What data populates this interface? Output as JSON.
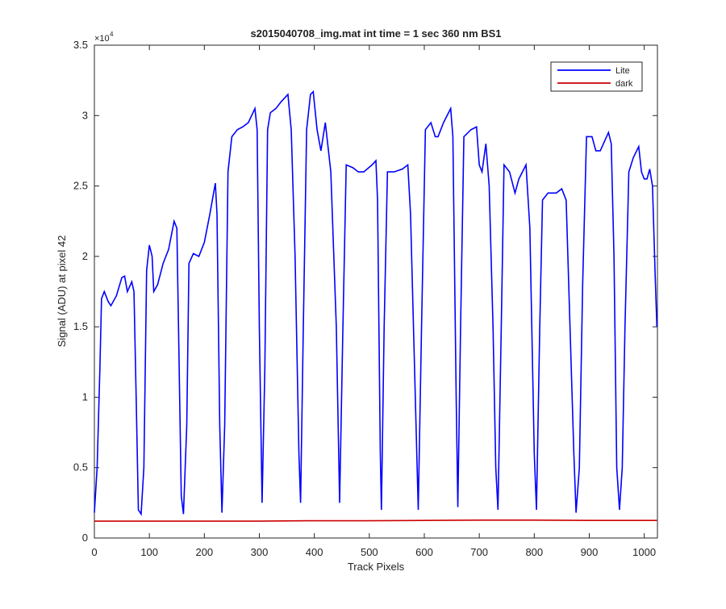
{
  "chart_data": {
    "type": "line",
    "title": "s2015040708_img.mat int time = 1 sec  360 nm BS1",
    "x_label": "Track Pixels",
    "y_label": "Signal (ADU) at pixel 42",
    "y_multiplier": "×10",
    "y_multiplier_exponent": "4",
    "xlim": [
      0,
      1024
    ],
    "ylim": [
      0,
      3.5
    ],
    "xticks": [
      0,
      100,
      200,
      300,
      400,
      500,
      600,
      700,
      800,
      900,
      1000
    ],
    "yticks": [
      0,
      0.5,
      1,
      1.5,
      2,
      2.5,
      3,
      3.5
    ],
    "grid": false,
    "legend_position": "northeast",
    "series": [
      {
        "name": "Lite",
        "color": "#0000ff",
        "x": [
          0,
          5,
          10,
          13,
          18,
          25,
          30,
          40,
          50,
          55,
          60,
          68,
          72,
          76,
          80,
          85,
          90,
          95,
          100,
          105,
          108,
          115,
          125,
          135,
          145,
          150,
          153,
          158,
          162,
          168,
          172,
          180,
          190,
          200,
          210,
          220,
          223,
          228,
          232,
          237,
          243,
          250,
          260,
          270,
          280,
          292,
          296,
          300,
          305,
          310,
          315,
          320,
          330,
          340,
          352,
          358,
          365,
          372,
          375,
          380,
          386,
          393,
          398,
          405,
          412,
          420,
          430,
          440,
          446,
          452,
          458,
          470,
          480,
          490,
          505,
          512,
          515,
          520,
          522,
          527,
          533,
          545,
          560,
          570,
          575,
          585,
          589,
          595,
          602,
          612,
          620,
          625,
          635,
          648,
          652,
          658,
          661,
          666,
          672,
          685,
          695,
          700,
          705,
          712,
          718,
          725,
          730,
          734,
          740,
          745,
          755,
          765,
          772,
          785,
          792,
          800,
          804,
          810,
          815,
          825,
          840,
          850,
          858,
          865,
          872,
          876,
          882,
          888,
          895,
          905,
          912,
          920,
          935,
          940,
          945,
          950,
          955,
          960,
          965,
          972,
          980,
          990,
          995,
          1000,
          1005,
          1010,
          1015,
          1020,
          1023
        ],
        "values": [
          0.18,
          0.5,
          1.2,
          1.7,
          1.75,
          1.68,
          1.65,
          1.72,
          1.85,
          1.86,
          1.75,
          1.82,
          1.75,
          1.0,
          0.2,
          0.17,
          0.5,
          1.9,
          2.08,
          2.0,
          1.75,
          1.8,
          1.95,
          2.05,
          2.25,
          2.2,
          1.5,
          0.3,
          0.17,
          0.8,
          1.95,
          2.02,
          2.0,
          2.1,
          2.3,
          2.52,
          2.3,
          0.8,
          0.18,
          0.8,
          2.6,
          2.85,
          2.9,
          2.92,
          2.95,
          3.05,
          2.9,
          1.5,
          0.25,
          1.2,
          2.9,
          3.02,
          3.05,
          3.1,
          3.15,
          2.9,
          2.0,
          0.6,
          0.25,
          1.5,
          2.9,
          3.15,
          3.17,
          2.9,
          2.75,
          2.95,
          2.6,
          1.5,
          0.25,
          1.5,
          2.65,
          2.63,
          2.6,
          2.6,
          2.65,
          2.68,
          2.4,
          0.6,
          0.2,
          1.5,
          2.6,
          2.6,
          2.62,
          2.65,
          2.3,
          0.8,
          0.2,
          1.5,
          2.9,
          2.95,
          2.85,
          2.85,
          2.95,
          3.05,
          2.85,
          1.0,
          0.22,
          1.5,
          2.85,
          2.9,
          2.92,
          2.65,
          2.6,
          2.8,
          2.5,
          1.5,
          0.5,
          0.2,
          1.5,
          2.65,
          2.6,
          2.45,
          2.55,
          2.65,
          2.2,
          0.6,
          0.2,
          1.5,
          2.4,
          2.45,
          2.45,
          2.48,
          2.4,
          1.5,
          0.6,
          0.18,
          0.5,
          1.8,
          2.85,
          2.85,
          2.75,
          2.75,
          2.88,
          2.8,
          2.0,
          0.5,
          0.2,
          0.5,
          1.5,
          2.6,
          2.7,
          2.78,
          2.6,
          2.55,
          2.55,
          2.62,
          2.5,
          1.85,
          1.5
        ]
      },
      {
        "name": "dark",
        "color": "#cc0000",
        "x": [
          0,
          100,
          200,
          300,
          400,
          500,
          600,
          700,
          800,
          900,
          1000,
          1023
        ],
        "values": [
          0.12,
          0.12,
          0.12,
          0.12,
          0.123,
          0.123,
          0.125,
          0.127,
          0.127,
          0.125,
          0.125,
          0.125
        ]
      }
    ]
  }
}
